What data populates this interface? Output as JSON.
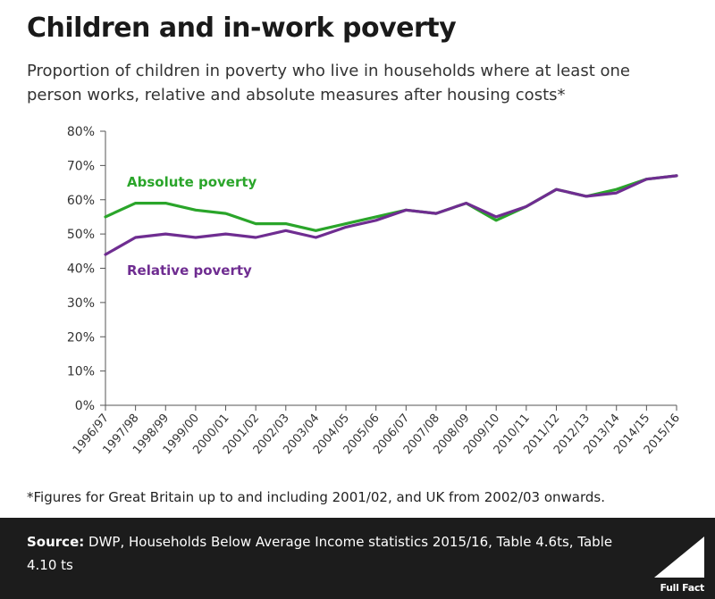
{
  "header": {
    "title": "Children and in-work poverty",
    "subtitle": "Proportion of children in poverty who live in households where at least one person works, relative and absolute measures after housing costs*"
  },
  "chart_data": {
    "type": "line",
    "categories": [
      "1996/97",
      "1997/98",
      "1998/99",
      "1999/00",
      "2000/01",
      "2001/02",
      "2002/03",
      "2003/04",
      "2004/05",
      "2005/06",
      "2006/07",
      "2007/08",
      "2008/09",
      "2009/10",
      "2010/11",
      "2011/12",
      "2012/13",
      "2013/14",
      "2014/15",
      "2015/16"
    ],
    "series": [
      {
        "name": "Absolute poverty",
        "color": "#2aa52a",
        "values": [
          55,
          59,
          59,
          57,
          56,
          53,
          53,
          51,
          53,
          55,
          57,
          56,
          59,
          54,
          58,
          63,
          61,
          63,
          66,
          67
        ]
      },
      {
        "name": "Relative poverty",
        "color": "#6f2d91",
        "values": [
          44,
          49,
          50,
          49,
          50,
          49,
          51,
          49,
          52,
          54,
          57,
          56,
          59,
          55,
          58,
          63,
          61,
          62,
          66,
          67
        ]
      }
    ],
    "yticks": [
      "0%",
      "10%",
      "20%",
      "30%",
      "40%",
      "50%",
      "60%",
      "70%",
      "80%"
    ],
    "ylim": [
      0,
      80
    ],
    "ystep": 10,
    "grid": false
  },
  "footnote": "*Figures for Great Britain up to and including 2001/02, and UK from 2002/03 onwards.",
  "footer": {
    "source_label": "Source:",
    "source_text": "DWP, Households Below Average Income statistics 2015/16, Table 4.6ts, Table 4.10 ts",
    "brand": "Full Fact"
  }
}
